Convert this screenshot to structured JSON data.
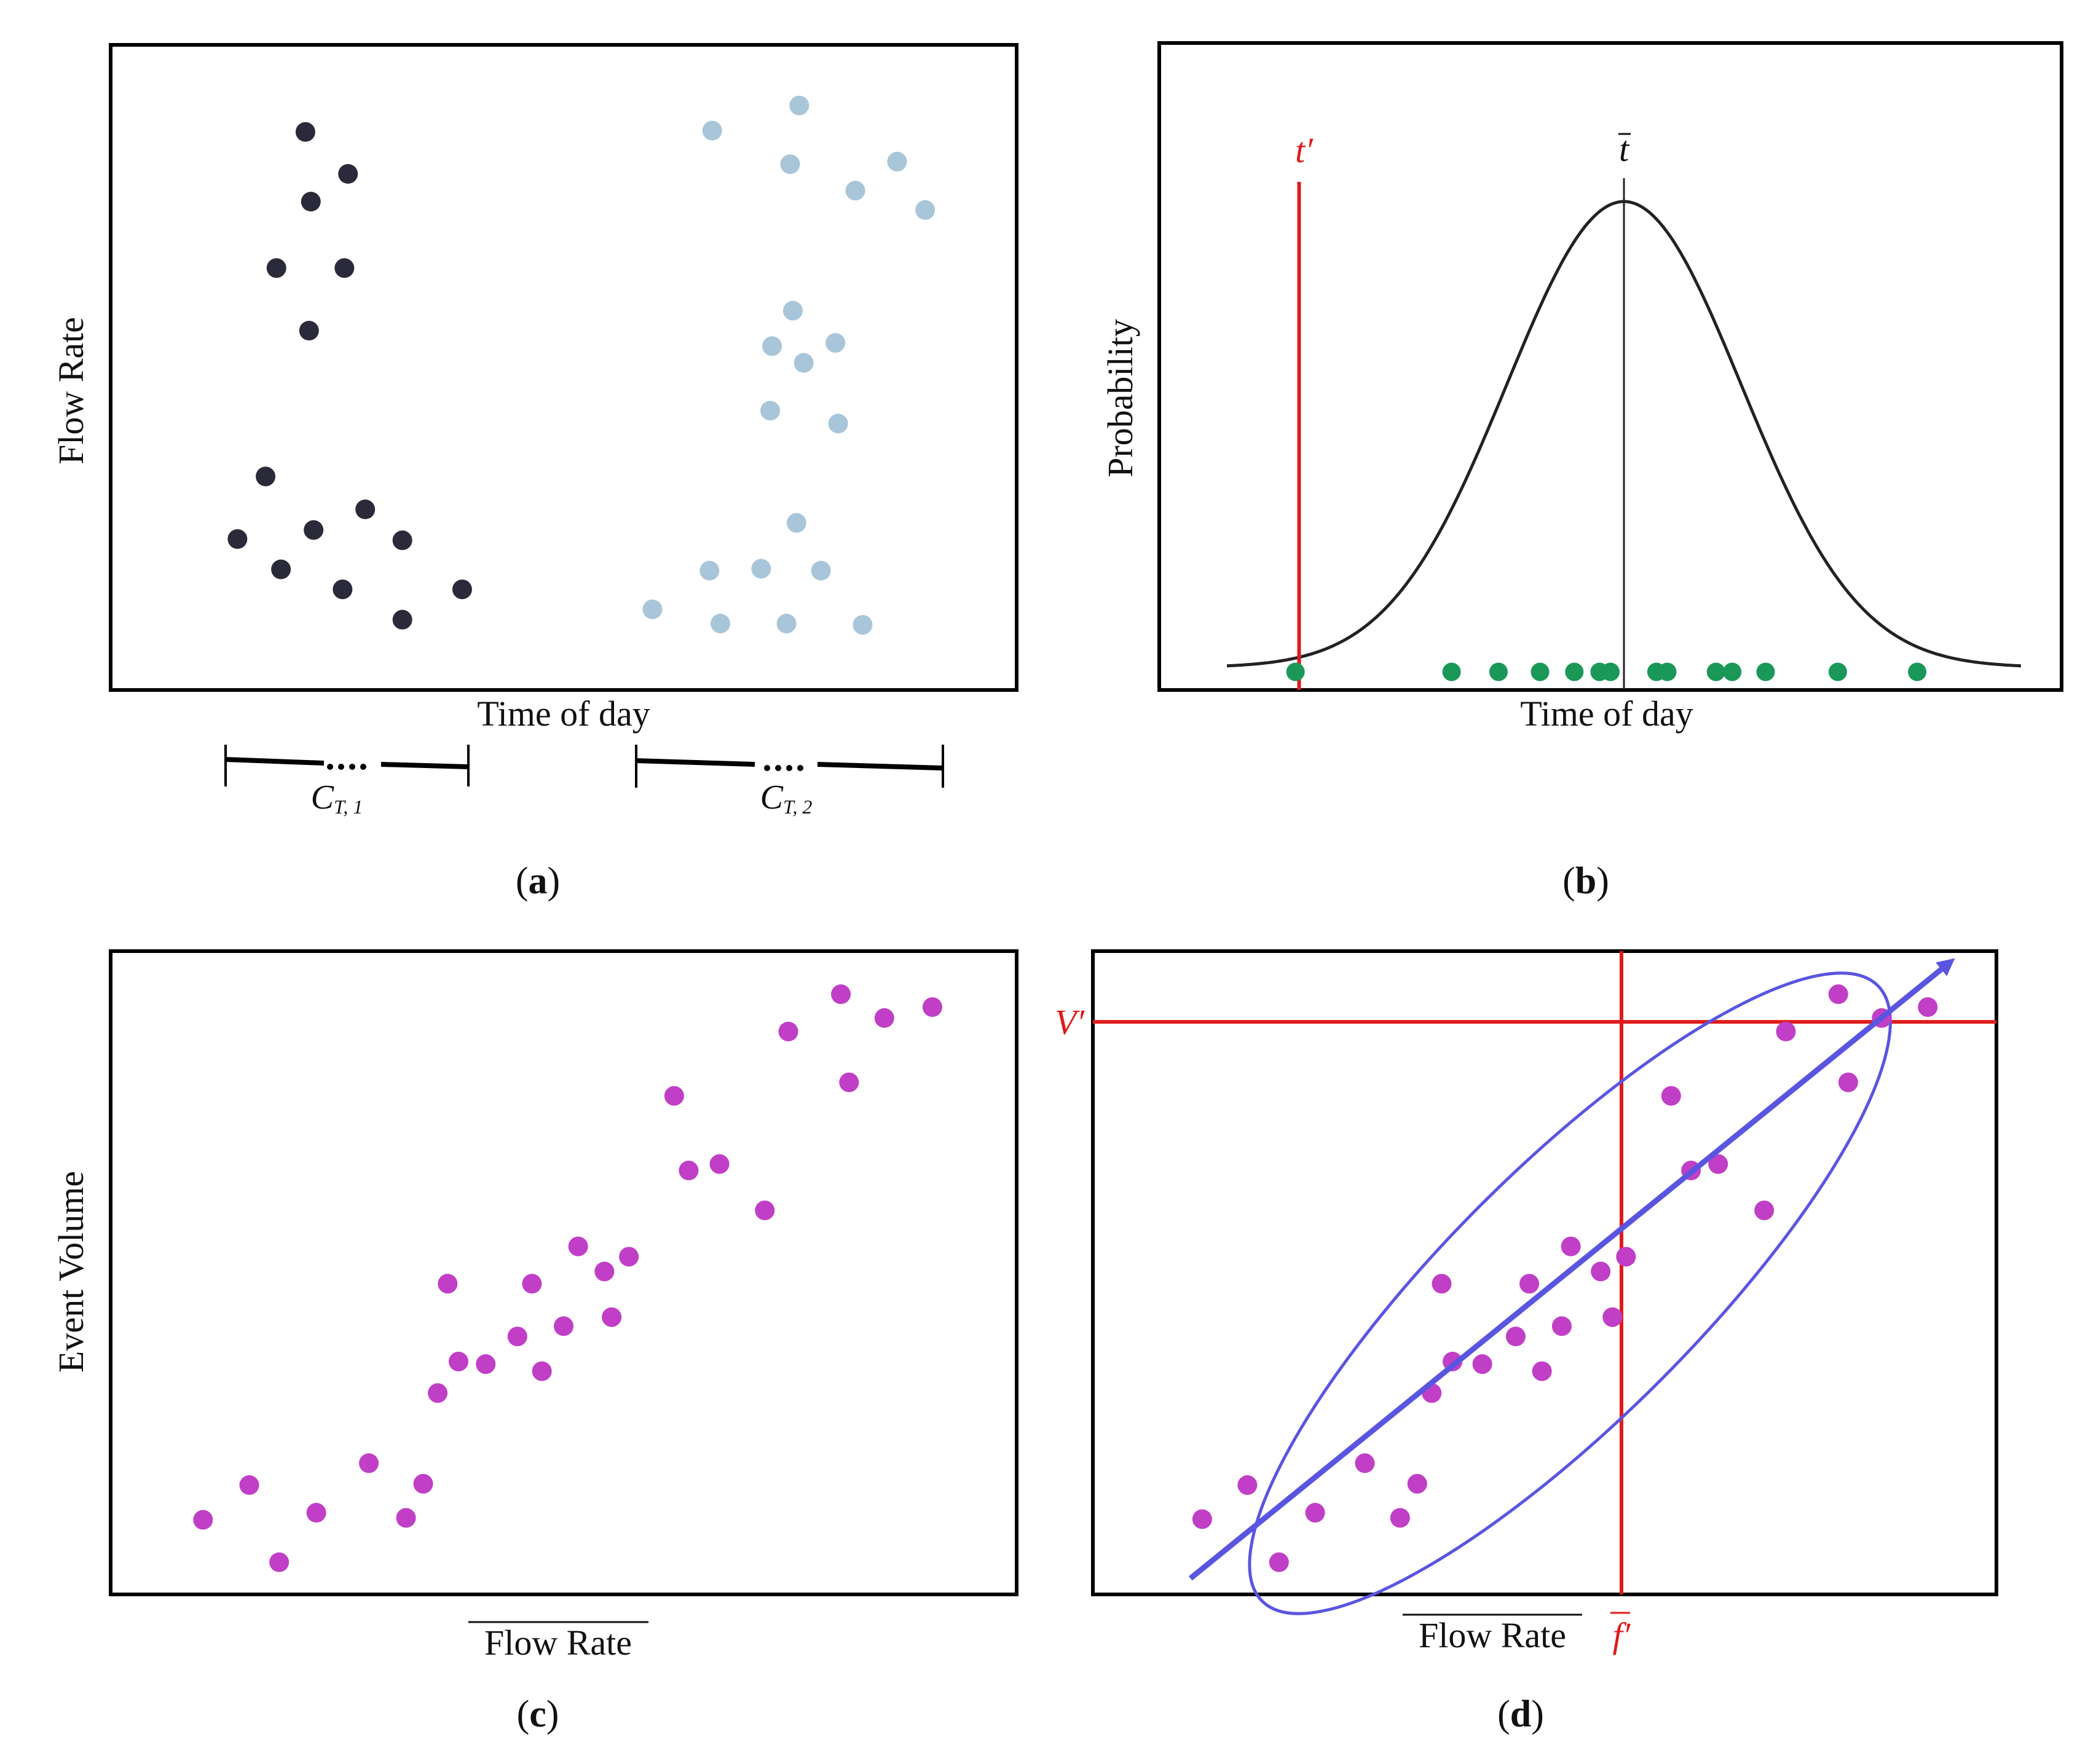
{
  "colors": {
    "frame": "#000000",
    "dark_cluster": "#2b2a3a",
    "light_cluster": "#a9c5d9",
    "green": "#1a9857",
    "magenta": "#c03fc6",
    "red": "#e01b1b",
    "blue": "#5a55e0",
    "curve": "#222222"
  },
  "chart_data": [
    {
      "id": "a",
      "type": "scatter",
      "panel_label": "a",
      "xlabel": "Time of day",
      "ylabel": "Flow  Rate",
      "xlim": [
        0,
        100
      ],
      "ylim": [
        0,
        100
      ],
      "series": [
        {
          "name": "cluster 1",
          "color_key": "dark_cluster",
          "points": [
            [
              21.5,
              86.5
            ],
            [
              26.2,
              80.0
            ],
            [
              22.1,
              75.7
            ],
            [
              18.3,
              65.4
            ],
            [
              25.8,
              65.4
            ],
            [
              21.9,
              55.7
            ],
            [
              17.1,
              33.1
            ],
            [
              28.1,
              28.0
            ],
            [
              22.4,
              24.8
            ],
            [
              14.0,
              23.4
            ],
            [
              32.2,
              23.2
            ],
            [
              18.8,
              18.7
            ],
            [
              25.6,
              15.6
            ],
            [
              38.8,
              15.6
            ],
            [
              32.2,
              10.9
            ]
          ]
        },
        {
          "name": "cluster 2",
          "color_key": "light_cluster",
          "points": [
            [
              76.0,
              90.6
            ],
            [
              66.4,
              86.7
            ],
            [
              75.0,
              81.5
            ],
            [
              86.8,
              81.9
            ],
            [
              82.2,
              77.4
            ],
            [
              89.9,
              74.4
            ],
            [
              75.3,
              58.8
            ],
            [
              73.0,
              53.3
            ],
            [
              80.0,
              53.8
            ],
            [
              76.5,
              50.7
            ],
            [
              72.8,
              43.3
            ],
            [
              80.3,
              41.3
            ],
            [
              75.7,
              25.9
            ],
            [
              71.8,
              18.8
            ],
            [
              66.1,
              18.5
            ],
            [
              78.4,
              18.5
            ],
            [
              59.8,
              12.5
            ],
            [
              67.3,
              10.3
            ],
            [
              74.6,
              10.3
            ],
            [
              83.0,
              10.1
            ]
          ]
        }
      ],
      "annotations": [
        {
          "kind": "bracket",
          "x_range": [
            12.7,
            39.5
          ],
          "label_main": "C",
          "label_sub": "T, 1"
        },
        {
          "kind": "bracket",
          "x_range": [
            58.0,
            91.9
          ],
          "label_main": "C",
          "label_sub": "T, 2"
        }
      ]
    },
    {
      "id": "b",
      "type": "line",
      "panel_label": "b",
      "xlabel": "Time of day",
      "ylabel": "Probability",
      "xlim": [
        0,
        100
      ],
      "ylim": [
        0,
        100
      ],
      "curve": {
        "kind": "gaussian",
        "mean": 51.5,
        "sd": 13.0,
        "peak": 72.0,
        "baseline": 3.5,
        "x_range": [
          7.5,
          95.5
        ]
      },
      "vlines": [
        {
          "label_main": "t",
          "label_sup": "′",
          "x": 15.5,
          "color_key": "red"
        },
        {
          "label_main": "t",
          "label_overline": true,
          "x": 51.5,
          "color_key": "curve"
        }
      ],
      "series": [
        {
          "name": "observations",
          "color_key": "green",
          "points": [
            [
              15.1,
              2.8
            ],
            [
              32.4,
              2.8
            ],
            [
              37.6,
              2.8
            ],
            [
              42.2,
              2.8
            ],
            [
              46.0,
              2.8
            ],
            [
              48.8,
              2.8
            ],
            [
              50.0,
              2.8
            ],
            [
              55.1,
              2.8
            ],
            [
              56.3,
              2.8
            ],
            [
              61.7,
              2.8
            ],
            [
              63.5,
              2.8
            ],
            [
              67.2,
              2.8
            ],
            [
              75.2,
              2.8
            ],
            [
              84.0,
              2.8
            ]
          ]
        }
      ]
    },
    {
      "id": "c",
      "type": "scatter",
      "panel_label": "c",
      "xlabel": "Flow  Rate",
      "xlabel_overline": true,
      "ylabel": "Event  Volume",
      "xlim": [
        0,
        100
      ],
      "ylim": [
        0,
        100
      ],
      "series": [
        {
          "name": "events",
          "color_key": "magenta",
          "points": [
            [
              10.2,
              11.6
            ],
            [
              15.3,
              17.0
            ],
            [
              18.6,
              5.0
            ],
            [
              22.7,
              12.7
            ],
            [
              28.5,
              20.4
            ],
            [
              32.6,
              11.9
            ],
            [
              34.5,
              17.2
            ],
            [
              36.1,
              31.3
            ],
            [
              37.2,
              48.3
            ],
            [
              38.4,
              36.2
            ],
            [
              41.4,
              35.8
            ],
            [
              44.9,
              40.1
            ],
            [
              46.5,
              48.3
            ],
            [
              47.6,
              34.7
            ],
            [
              50.0,
              41.7
            ],
            [
              51.6,
              54.1
            ],
            [
              54.5,
              50.2
            ],
            [
              55.3,
              43.1
            ],
            [
              57.2,
              52.5
            ],
            [
              62.2,
              77.5
            ],
            [
              63.8,
              65.9
            ],
            [
              67.2,
              66.9
            ],
            [
              72.2,
              59.7
            ],
            [
              74.8,
              87.5
            ],
            [
              80.6,
              93.3
            ],
            [
              81.5,
              79.6
            ],
            [
              85.4,
              89.6
            ],
            [
              90.7,
              91.3
            ]
          ]
        }
      ]
    },
    {
      "id": "d",
      "type": "scatter",
      "panel_label": "d",
      "xlabel": "Flow  Rate",
      "xlabel_overline": true,
      "ylabel": "Event  Volume",
      "xlim": [
        0,
        100
      ],
      "ylim": [
        0,
        100
      ],
      "vline": {
        "x": 58.5,
        "label_main": "f",
        "label_overline": true,
        "label_sup": "′",
        "color_key": "red"
      },
      "hline": {
        "y": 89.0,
        "label_main": "V",
        "label_sup": "′",
        "color_key": "red"
      },
      "ellipse": {
        "cx": 52.8,
        "cy": 46.8,
        "rx": 55.5,
        "ry": 16.0,
        "angle_deg": 45.0,
        "color_key": "blue"
      },
      "arrow": {
        "from": [
          10.8,
          2.5
        ],
        "to": [
          94.8,
          98.2
        ],
        "color_key": "blue"
      },
      "series": [
        {
          "name": "events",
          "color_key": "magenta",
          "points": [
            [
              12.1,
              11.7
            ],
            [
              17.1,
              17.0
            ],
            [
              20.6,
              5.0
            ],
            [
              24.6,
              12.7
            ],
            [
              30.1,
              20.4
            ],
            [
              34.0,
              11.9
            ],
            [
              35.9,
              17.2
            ],
            [
              37.5,
              31.3
            ],
            [
              38.6,
              48.3
            ],
            [
              39.8,
              36.2
            ],
            [
              43.1,
              35.8
            ],
            [
              46.8,
              40.1
            ],
            [
              48.3,
              48.3
            ],
            [
              49.7,
              34.7
            ],
            [
              51.9,
              41.7
            ],
            [
              52.9,
              54.1
            ],
            [
              56.2,
              50.2
            ],
            [
              57.5,
              43.1
            ],
            [
              59.0,
              52.5
            ],
            [
              64.0,
              77.5
            ],
            [
              66.2,
              65.9
            ],
            [
              69.2,
              66.9
            ],
            [
              74.3,
              59.7
            ],
            [
              76.7,
              87.5
            ],
            [
              82.5,
              93.3
            ],
            [
              83.6,
              79.6
            ],
            [
              87.3,
              89.6
            ],
            [
              92.4,
              91.3
            ]
          ]
        }
      ]
    }
  ]
}
